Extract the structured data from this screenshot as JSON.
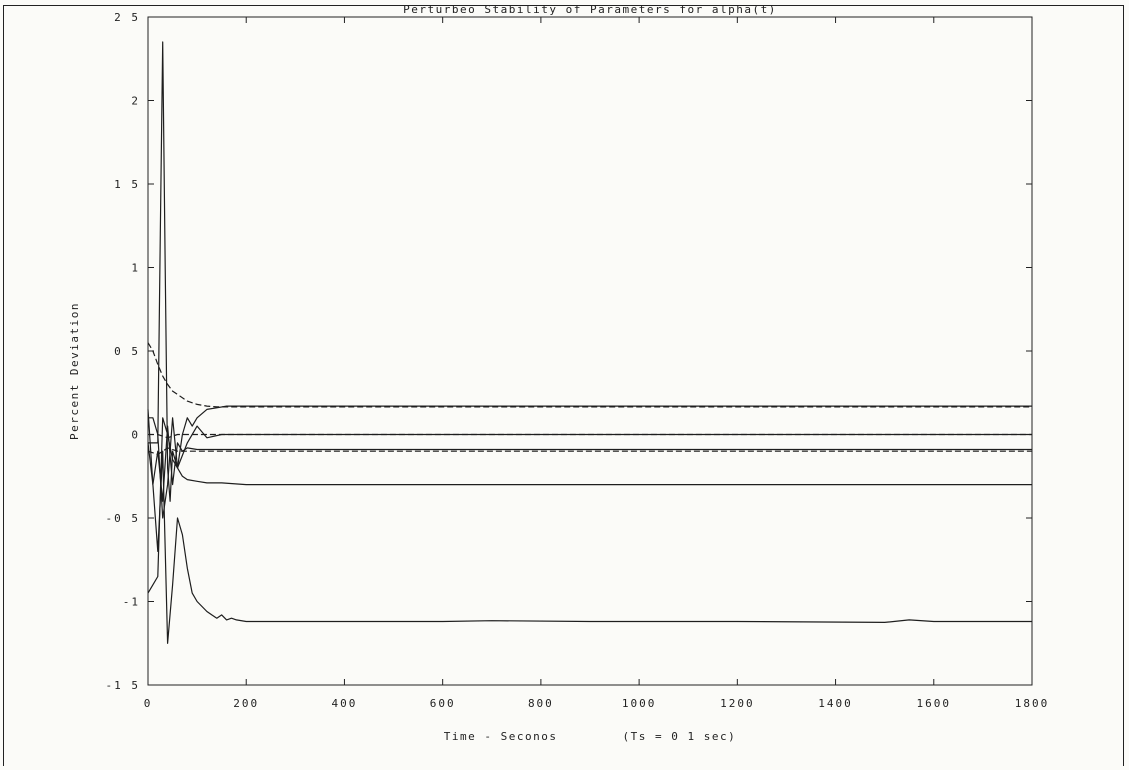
{
  "chart_data": {
    "type": "line",
    "title": "Perturbeo Stability of Parameters for alpha(t)",
    "xlabel": "Time - Seconos        (Ts = 0 1 sec)",
    "ylabel": "Percent Deviation",
    "xlim": [
      0,
      1800
    ],
    "ylim": [
      -1.5,
      2.5
    ],
    "xticks": [
      0,
      200,
      400,
      600,
      800,
      1000,
      1200,
      1400,
      1600,
      1800
    ],
    "xtick_labels": [
      "0",
      "200",
      "400",
      "600",
      "800",
      "1000",
      "1200",
      "1400",
      "1600",
      "1800"
    ],
    "yticks": [
      -1.5,
      -1,
      -0.5,
      0,
      0.5,
      1,
      1.5,
      2,
      2.5
    ],
    "ytick_labels": [
      "-1 5",
      "-1",
      "-0 5",
      "0",
      "0 5",
      "1",
      "1 5",
      "2",
      "2 5"
    ],
    "grid": false,
    "series": [
      {
        "style": "solid",
        "x": [
          0,
          10,
          20,
          25,
          30,
          35,
          40,
          45,
          50,
          60,
          70,
          80,
          90,
          100,
          120,
          140,
          160,
          180,
          200,
          300,
          600,
          900,
          1200,
          1500,
          1800
        ],
        "y": [
          -0.05,
          -0.05,
          -0.05,
          1.2,
          2.35,
          1.0,
          -0.2,
          -0.4,
          -0.1,
          -0.2,
          0.0,
          0.1,
          0.05,
          0.1,
          0.15,
          0.16,
          0.17,
          0.17,
          0.17,
          0.17,
          0.17,
          0.17,
          0.17,
          0.17,
          0.17
        ]
      },
      {
        "style": "dashed",
        "x": [
          0,
          10,
          20,
          30,
          40,
          50,
          60,
          80,
          100,
          120,
          140,
          160,
          180,
          200,
          300,
          600,
          900,
          1200,
          1500,
          1800
        ],
        "y": [
          0.55,
          0.5,
          0.42,
          0.35,
          0.3,
          0.26,
          0.24,
          0.2,
          0.18,
          0.17,
          0.165,
          0.165,
          0.165,
          0.165,
          0.165,
          0.165,
          0.165,
          0.165,
          0.165,
          0.165
        ]
      },
      {
        "style": "solid",
        "x": [
          0,
          10,
          20,
          30,
          40,
          50,
          60,
          70,
          80,
          90,
          100,
          110,
          120,
          130,
          140,
          150,
          160,
          170,
          180,
          200,
          300,
          600,
          700,
          900,
          1200,
          1500,
          1550,
          1600,
          1800
        ],
        "y": [
          0.15,
          -0.3,
          -0.7,
          -0.1,
          -1.25,
          -0.9,
          -0.5,
          -0.6,
          -0.8,
          -0.95,
          -1.0,
          -1.03,
          -1.06,
          -1.08,
          -1.1,
          -1.08,
          -1.11,
          -1.1,
          -1.11,
          -1.12,
          -1.12,
          -1.12,
          -1.115,
          -1.12,
          -1.12,
          -1.125,
          -1.11,
          -1.12,
          -1.12
        ]
      },
      {
        "style": "solid",
        "x": [
          0,
          10,
          20,
          30,
          40,
          50,
          60,
          70,
          80,
          100,
          120,
          150,
          200,
          300,
          600,
          900,
          1200,
          1500,
          1800
        ],
        "y": [
          -0.95,
          -0.9,
          -0.85,
          0.1,
          0.0,
          -0.15,
          -0.2,
          -0.25,
          -0.27,
          -0.28,
          -0.29,
          -0.29,
          -0.3,
          -0.3,
          -0.3,
          -0.3,
          -0.3,
          -0.3,
          -0.3
        ]
      },
      {
        "style": "solid",
        "x": [
          0,
          10,
          20,
          30,
          40,
          50,
          60,
          80,
          100,
          120,
          150,
          200,
          300,
          600,
          900,
          1200,
          1500,
          1800
        ],
        "y": [
          0.1,
          0.1,
          0.0,
          -0.5,
          -0.3,
          0.1,
          -0.2,
          -0.05,
          0.05,
          -0.02,
          0.0,
          0.0,
          0.0,
          0.0,
          0.0,
          0.0,
          0.0,
          0.0
        ]
      },
      {
        "style": "dashed",
        "x": [
          0,
          20,
          40,
          60,
          80,
          100,
          150,
          200,
          300,
          600,
          900,
          1200,
          1500,
          1800
        ],
        "y": [
          0.0,
          0.0,
          -0.02,
          0.0,
          0.0,
          0.0,
          0.0,
          0.0,
          0.0,
          0.0,
          0.0,
          0.0,
          0.0,
          0.0
        ]
      },
      {
        "style": "solid",
        "x": [
          0,
          10,
          20,
          30,
          40,
          50,
          60,
          70,
          80,
          100,
          120,
          150,
          200,
          300,
          600,
          900,
          1200,
          1500,
          1800
        ],
        "y": [
          -0.05,
          -0.3,
          -0.1,
          -0.4,
          0.05,
          -0.3,
          -0.05,
          -0.1,
          -0.08,
          -0.09,
          -0.09,
          -0.09,
          -0.09,
          -0.09,
          -0.09,
          -0.09,
          -0.09,
          -0.09,
          -0.09
        ]
      },
      {
        "style": "dashed",
        "x": [
          0,
          20,
          40,
          60,
          80,
          100,
          150,
          200,
          300,
          600,
          900,
          1200,
          1500,
          1800
        ],
        "y": [
          -0.1,
          -0.12,
          -0.08,
          -0.1,
          -0.1,
          -0.1,
          -0.1,
          -0.1,
          -0.1,
          -0.1,
          -0.1,
          -0.1,
          -0.1,
          -0.1
        ]
      }
    ]
  }
}
